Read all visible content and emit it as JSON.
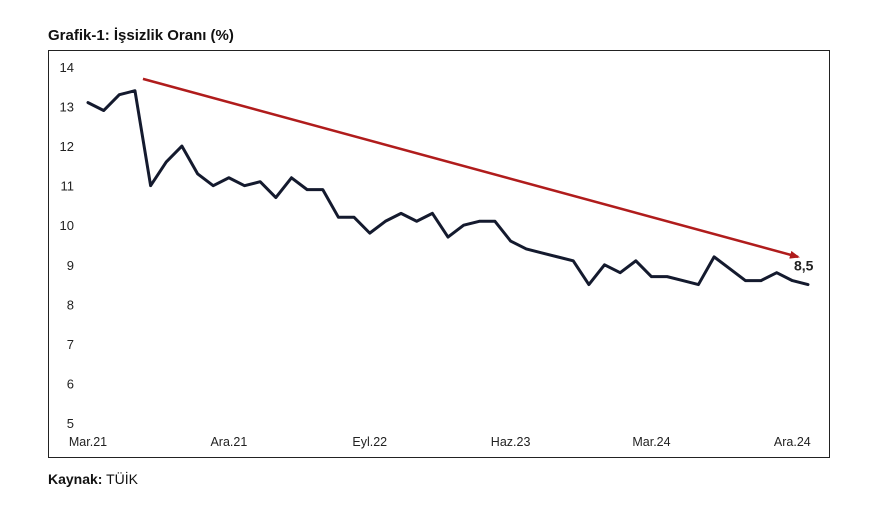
{
  "title": "Grafik-1: İşsizlik Oranı (%)",
  "source": {
    "label": "Kaynak:",
    "value": "TÜİK"
  },
  "chart_data": {
    "type": "line",
    "xlabel": "",
    "ylabel": "",
    "ylim": [
      5,
      14
    ],
    "yticks": [
      5,
      6,
      7,
      8,
      9,
      10,
      11,
      12,
      13,
      14
    ],
    "xtick_labels": [
      "Mar.21",
      "Ara.21",
      "Eyl.22",
      "Haz.23",
      "Mar.24",
      "Ara.24"
    ],
    "grid": false,
    "legend": "none",
    "series": [
      {
        "color": "#141a2e",
        "values": [
          13.1,
          12.9,
          13.3,
          13.4,
          11.0,
          11.6,
          12.0,
          11.3,
          11.0,
          11.2,
          11.0,
          11.1,
          10.7,
          11.2,
          10.9,
          10.9,
          10.2,
          10.2,
          9.8,
          10.1,
          10.3,
          10.1,
          10.3,
          9.7,
          10.0,
          10.1,
          10.1,
          9.6,
          9.4,
          9.3,
          9.2,
          9.1,
          8.5,
          9.0,
          8.8,
          9.1,
          8.7,
          8.7,
          8.6,
          8.5,
          9.2,
          8.9,
          8.6,
          8.6,
          8.8,
          8.6,
          8.5
        ]
      }
    ],
    "trend_arrow": {
      "color": "#b01c1c",
      "from_index": 3,
      "from_value": 13.7,
      "to_index": 46,
      "to_value": 9.2
    },
    "annotation": {
      "text": "8,5",
      "index": 46,
      "value": 8.5
    }
  }
}
